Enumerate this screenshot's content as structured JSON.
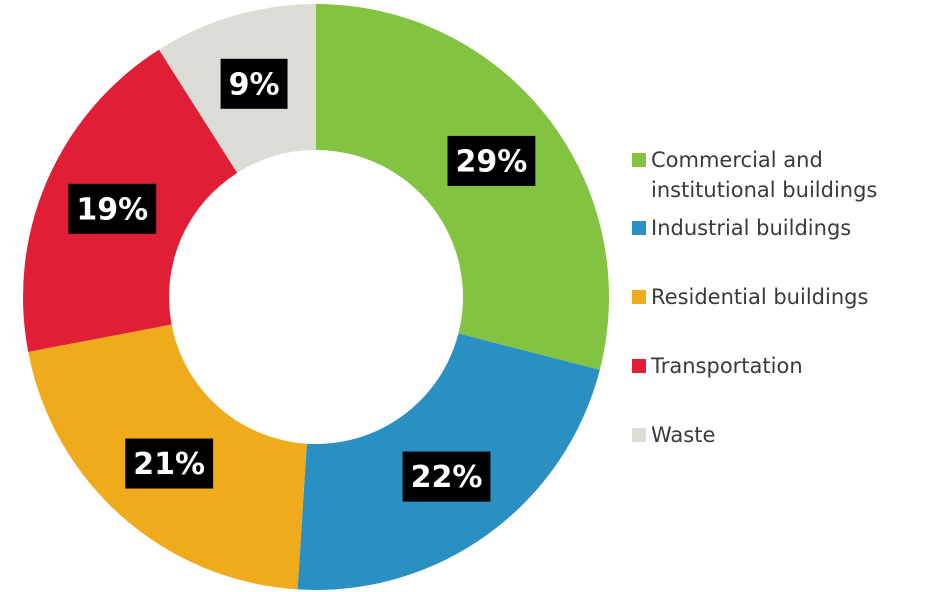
{
  "chart_data": {
    "type": "donut",
    "categories": [
      "Commercial and institutional buildings",
      "Industrial buildings",
      "Residential buildings",
      "Transportation",
      "Waste"
    ],
    "values": [
      29,
      22,
      21,
      19,
      9
    ],
    "value_labels": [
      "29%",
      "22%",
      "21%",
      "19%",
      "9%"
    ],
    "colors": [
      "#82c341",
      "#2a8fc1",
      "#f0ab1c",
      "#e01f37",
      "#dcdcd7"
    ],
    "legend": "right"
  }
}
